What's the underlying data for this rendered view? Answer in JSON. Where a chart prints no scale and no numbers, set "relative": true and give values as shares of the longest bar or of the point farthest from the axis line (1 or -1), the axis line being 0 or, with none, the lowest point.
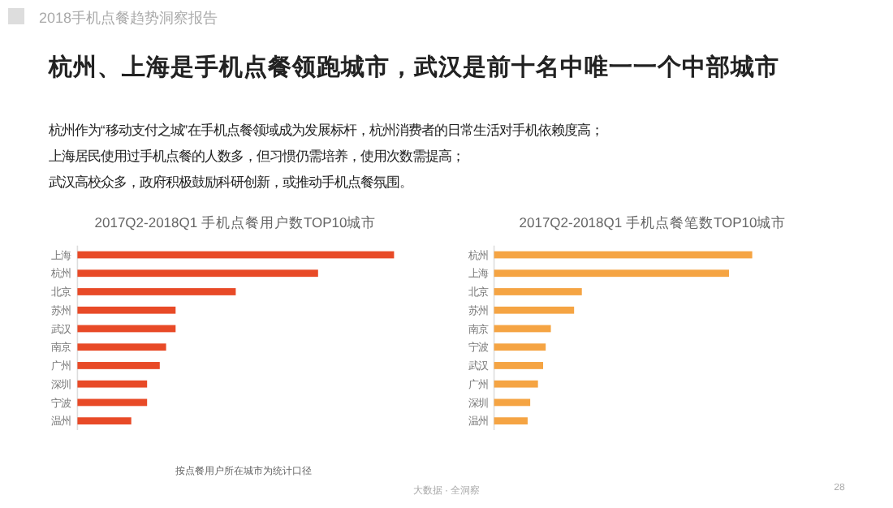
{
  "chart_data": [
    {
      "type": "other",
      "title": "杭州、上海是手机点餐领跑城市，武汉是前十名中唯一一个中部城市",
      "subtitle": "2018手机点餐趋势洞察报告",
      "annotations": [
        "杭州作为“移动支付之城”在手机点餐领域成为发展标杆，杭州消费者的日常生活对手机依赖度高；",
        "上海居民使用过手机点餐的人数多，但习惯仍需培养，使用次数需提高；",
        "武汉高校众多，政府积极鼓励科研创新，或推动手机点餐氛围。",
        "大数据 · 全洞察",
        "28"
      ]
    },
    {
      "type": "bar",
      "orientation": "horizontal",
      "relative": true,
      "title": "2017Q2-2018Q1 手机点餐用户数TOP10城市",
      "categories": [
        "上海",
        "杭州",
        "北京",
        "苏州",
        "武汉",
        "南京",
        "广州",
        "深圳",
        "宁波",
        "温州"
      ],
      "values": [
        1,
        0.76,
        0.5,
        0.31,
        0.31,
        0.28,
        0.26,
        0.22,
        0.22,
        0.17
      ],
      "color": "#e84a27",
      "annotations": [
        "按点餐用户所在城市为统计口径"
      ]
    },
    {
      "type": "bar",
      "orientation": "horizontal",
      "relative": true,
      "title": "2017Q2-2018Q1 手机点餐笔数TOP10城市",
      "categories": [
        "杭州",
        "上海",
        "北京",
        "苏州",
        "南京",
        "宁波",
        "武汉",
        "广州",
        "深圳",
        "温州"
      ],
      "values": [
        1,
        0.91,
        0.34,
        0.31,
        0.22,
        0.2,
        0.19,
        0.17,
        0.14,
        0.13
      ],
      "color": "#f5a443"
    }
  ]
}
